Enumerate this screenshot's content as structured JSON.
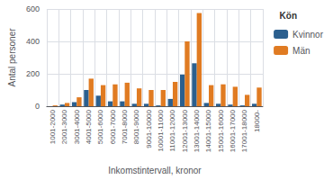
{
  "chart_data": {
    "type": "bar",
    "xlabel": "Inkomstintervall, kronor",
    "ylabel": "Antal personer",
    "legend_title": "Kön",
    "categories": [
      "1001-2000",
      "2001-3000",
      "3001-4000",
      "4001-5000",
      "5001-6000",
      "6001-7000",
      "7001-8000",
      "8001-9000",
      "9001-10000",
      "10001-11000",
      "11001-12000",
      "12001-13000",
      "13001-14000",
      "14001-15000",
      "15001-16000",
      "16001-17000",
      "17001-18000",
      "18000-"
    ],
    "series": [
      {
        "name": "Kvinnor",
        "color": "#2b5f8e",
        "values": [
          0,
          10,
          25,
          100,
          65,
          30,
          30,
          15,
          15,
          5,
          45,
          195,
          265,
          20,
          15,
          10,
          5,
          15
        ]
      },
      {
        "name": "Män",
        "color": "#e07b22",
        "values": [
          5,
          20,
          55,
          170,
          130,
          135,
          145,
          110,
          100,
          100,
          150,
          400,
          575,
          130,
          135,
          120,
          70,
          115
        ]
      }
    ],
    "ylim": [
      0,
      600
    ],
    "yticks": [
      0,
      200,
      400,
      600
    ],
    "grid": true,
    "legend": "upper right"
  }
}
